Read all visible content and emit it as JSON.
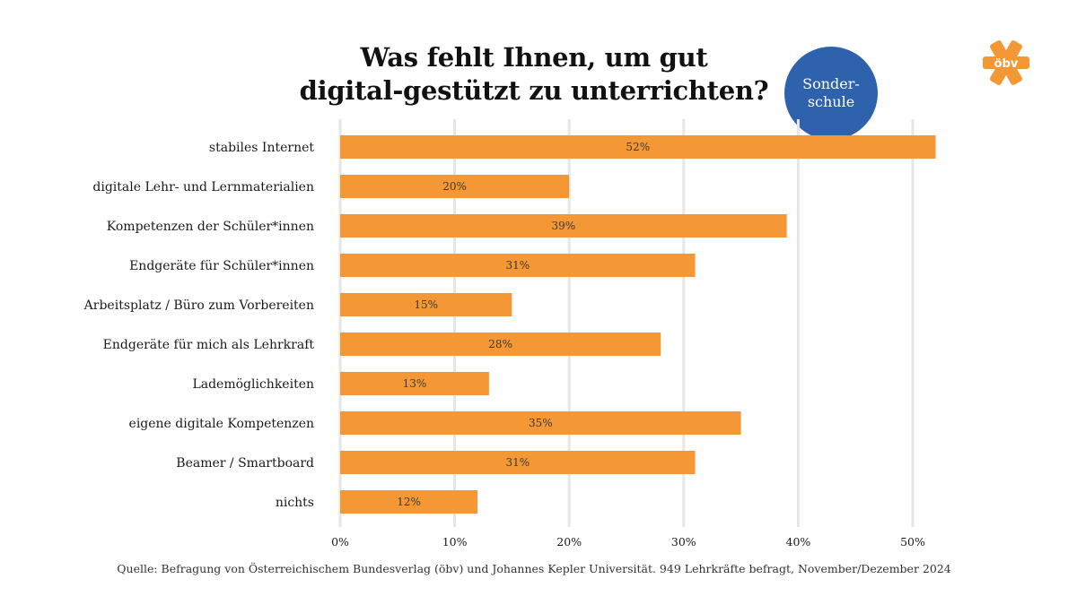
{
  "header": {
    "title_line1": "Was fehlt Ihnen, um gut",
    "title_line2": "digital-gestützt zu unterrichten?"
  },
  "badge": {
    "line1": "Sonder-",
    "line2": "schule",
    "color": "#2f62ad"
  },
  "logo": {
    "text": "öbv",
    "color": "#f39834"
  },
  "footer": {
    "source": "Quelle: Befragung von Österreichischem Bundesverlag (öbv) und Johannes Kepler Universität. 949 Lehrkräfte befragt, November/Dezember 2024"
  },
  "chart_data": {
    "type": "bar",
    "orientation": "horizontal",
    "title": "Was fehlt Ihnen, um gut digital-gestützt zu unterrichten?",
    "categories": [
      "stabiles Internet",
      "digitale Lehr- und Lernmaterialien",
      "Kompetenzen der Schüler*innen",
      "Endgeräte für Schüler*innen",
      "Arbeitsplatz / Büro zum Vorbereiten",
      "Endgeräte für mich als Lehrkraft",
      "Lademöglichkeiten",
      "eigene digitale Kompetenzen",
      "Beamer / Smartboard",
      "nichts"
    ],
    "values": [
      52,
      20,
      39,
      31,
      15,
      28,
      13,
      35,
      31,
      12
    ],
    "value_labels": [
      "52%",
      "20%",
      "39%",
      "31%",
      "15%",
      "28%",
      "13%",
      "35%",
      "31%",
      "12%"
    ],
    "x_ticks": [
      0,
      10,
      20,
      30,
      40,
      50
    ],
    "x_tick_labels": [
      "0%",
      "10%",
      "20%",
      "30%",
      "40%",
      "50%"
    ],
    "xlim": [
      0,
      50
    ],
    "grid": true,
    "bar_color": "#f39834",
    "grid_color": "#e6e6e6"
  }
}
